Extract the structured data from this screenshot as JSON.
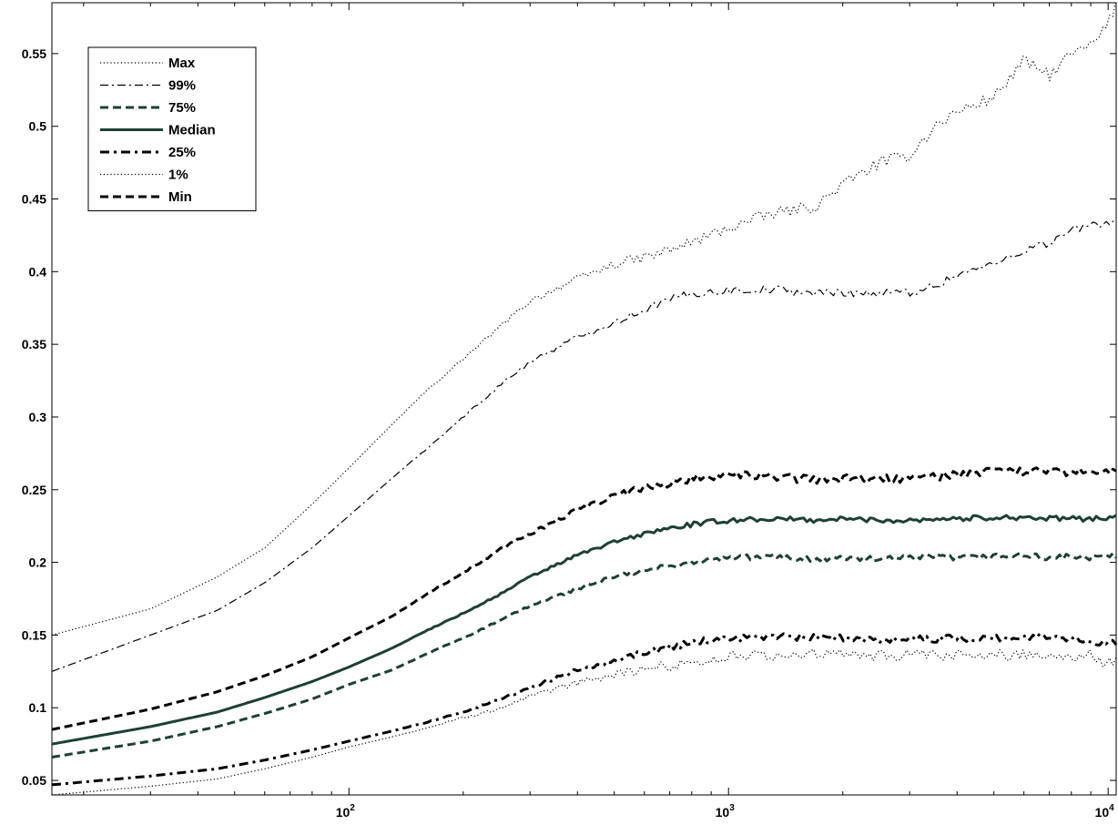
{
  "chart_data": {
    "type": "line",
    "title": "",
    "xlabel": "",
    "ylabel": "",
    "xscale": "log",
    "xlim": [
      16.5,
      10500
    ],
    "ylim": [
      0.04,
      0.585
    ],
    "x_ticks": [
      {
        "value": 100,
        "base": "10",
        "exp": "2"
      },
      {
        "value": 1000,
        "base": "10",
        "exp": "3"
      },
      {
        "value": 10000,
        "base": "10",
        "exp": "4"
      }
    ],
    "y_ticks": [
      {
        "value": 0.05,
        "label": "0.05"
      },
      {
        "value": 0.1,
        "label": "0.1"
      },
      {
        "value": 0.15,
        "label": "0.15"
      },
      {
        "value": 0.2,
        "label": "0.2"
      },
      {
        "value": 0.25,
        "label": "0.25"
      },
      {
        "value": 0.3,
        "label": "0.3"
      },
      {
        "value": 0.35,
        "label": "0.35"
      },
      {
        "value": 0.4,
        "label": "0.4"
      },
      {
        "value": 0.45,
        "label": "0.45"
      },
      {
        "value": 0.5,
        "label": "0.5"
      },
      {
        "value": 0.55,
        "label": "0.55"
      }
    ],
    "grid": false,
    "legend_position": "top-left",
    "series": [
      {
        "name": "Max",
        "color": "#000000",
        "style": "dotted",
        "width": 1.2,
        "noise": 0.004,
        "x": [
          16.5,
          30,
          45,
          60,
          80,
          100,
          130,
          160,
          200,
          250,
          300,
          400,
          500,
          650,
          800,
          1000,
          1300,
          1700,
          2000,
          2500,
          3000,
          3500,
          4000,
          5000,
          6000,
          7000,
          8000,
          9000,
          10000,
          10500
        ],
        "y": [
          0.15,
          0.168,
          0.19,
          0.21,
          0.24,
          0.265,
          0.295,
          0.318,
          0.34,
          0.362,
          0.38,
          0.395,
          0.405,
          0.412,
          0.42,
          0.43,
          0.44,
          0.445,
          0.46,
          0.475,
          0.48,
          0.5,
          0.51,
          0.52,
          0.545,
          0.535,
          0.55,
          0.555,
          0.57,
          0.585
        ]
      },
      {
        "name": "99%",
        "color": "#000000",
        "style": "dashdot",
        "width": 1.2,
        "noise": 0.003,
        "x": [
          16.5,
          30,
          45,
          60,
          80,
          100,
          130,
          160,
          200,
          250,
          300,
          400,
          500,
          650,
          800,
          1000,
          1300,
          1700,
          2000,
          2500,
          3000,
          3500,
          4000,
          5000,
          6000,
          7000,
          8000,
          9000,
          10000,
          10500
        ],
        "y": [
          0.125,
          0.15,
          0.167,
          0.186,
          0.21,
          0.232,
          0.258,
          0.278,
          0.3,
          0.322,
          0.338,
          0.355,
          0.365,
          0.378,
          0.385,
          0.387,
          0.388,
          0.385,
          0.386,
          0.385,
          0.386,
          0.39,
          0.398,
          0.405,
          0.415,
          0.42,
          0.428,
          0.432,
          0.434,
          0.435
        ]
      },
      {
        "name": "75%",
        "color": "#1e4034",
        "style": "dashed",
        "width": 3,
        "noise": 0.002,
        "x": [
          16.5,
          30,
          45,
          60,
          80,
          100,
          130,
          160,
          200,
          250,
          300,
          400,
          500,
          650,
          800,
          1000,
          1300,
          1700,
          2000,
          2500,
          3000,
          3500,
          4000,
          5000,
          6000,
          7000,
          8000,
          9000,
          10000,
          10500
        ],
        "y": [
          0.066,
          0.077,
          0.087,
          0.096,
          0.106,
          0.116,
          0.126,
          0.137,
          0.148,
          0.16,
          0.17,
          0.182,
          0.19,
          0.196,
          0.2,
          0.203,
          0.204,
          0.202,
          0.203,
          0.202,
          0.203,
          0.204,
          0.203,
          0.204,
          0.205,
          0.203,
          0.204,
          0.203,
          0.204,
          0.205
        ]
      },
      {
        "name": "Median",
        "color": "#1e4034",
        "style": "solid",
        "width": 3,
        "noise": 0.0018,
        "x": [
          16.5,
          30,
          45,
          60,
          80,
          100,
          130,
          160,
          200,
          250,
          300,
          400,
          500,
          650,
          800,
          1000,
          1300,
          1700,
          2000,
          2500,
          3000,
          3500,
          4000,
          5000,
          6000,
          7000,
          8000,
          9000,
          10000,
          10500
        ],
        "y": [
          0.075,
          0.087,
          0.097,
          0.107,
          0.118,
          0.128,
          0.141,
          0.153,
          0.165,
          0.178,
          0.19,
          0.205,
          0.214,
          0.222,
          0.226,
          0.229,
          0.23,
          0.229,
          0.23,
          0.229,
          0.229,
          0.23,
          0.23,
          0.231,
          0.231,
          0.23,
          0.23,
          0.23,
          0.231,
          0.232
        ]
      },
      {
        "name": "25%",
        "color": "#000000",
        "style": "dashdot",
        "width": 3,
        "noise": 0.0025,
        "x": [
          16.5,
          30,
          45,
          60,
          80,
          100,
          130,
          160,
          200,
          250,
          300,
          400,
          500,
          650,
          800,
          1000,
          1300,
          1700,
          2000,
          2500,
          3000,
          3500,
          4000,
          5000,
          6000,
          7000,
          8000,
          9000,
          10000,
          10500
        ],
        "y": [
          0.047,
          0.053,
          0.058,
          0.064,
          0.071,
          0.077,
          0.084,
          0.09,
          0.097,
          0.106,
          0.114,
          0.126,
          0.133,
          0.14,
          0.145,
          0.148,
          0.149,
          0.148,
          0.148,
          0.147,
          0.148,
          0.147,
          0.148,
          0.148,
          0.148,
          0.149,
          0.148,
          0.146,
          0.145,
          0.145
        ]
      },
      {
        "name": "1%",
        "color": "#000000",
        "style": "dotted",
        "width": 1.2,
        "noise": 0.004,
        "x": [
          16.5,
          30,
          45,
          60,
          80,
          100,
          130,
          160,
          200,
          250,
          300,
          400,
          500,
          650,
          800,
          1000,
          1300,
          1700,
          2000,
          2500,
          3000,
          3500,
          4000,
          5000,
          6000,
          7000,
          8000,
          9000,
          10000,
          10500
        ],
        "y": [
          0.04,
          0.046,
          0.051,
          0.058,
          0.066,
          0.073,
          0.08,
          0.086,
          0.093,
          0.1,
          0.107,
          0.117,
          0.123,
          0.128,
          0.131,
          0.135,
          0.136,
          0.137,
          0.136,
          0.136,
          0.136,
          0.135,
          0.136,
          0.136,
          0.137,
          0.136,
          0.136,
          0.136,
          0.13,
          0.133
        ]
      },
      {
        "name": "Min",
        "color": "#000000",
        "style": "dashed",
        "width": 3,
        "noise": 0.003,
        "x": [
          16.5,
          30,
          45,
          60,
          80,
          100,
          130,
          160,
          200,
          250,
          300,
          400,
          500,
          650,
          800,
          1000,
          1300,
          1700,
          2000,
          2500,
          3000,
          3500,
          4000,
          5000,
          6000,
          7000,
          8000,
          9000,
          10000,
          10500
        ],
        "y": [
          0.085,
          0.099,
          0.111,
          0.122,
          0.135,
          0.148,
          0.163,
          0.178,
          0.193,
          0.209,
          0.22,
          0.236,
          0.246,
          0.253,
          0.258,
          0.26,
          0.259,
          0.257,
          0.258,
          0.257,
          0.258,
          0.259,
          0.261,
          0.262,
          0.263,
          0.262,
          0.262,
          0.262,
          0.263,
          0.264
        ]
      }
    ]
  }
}
